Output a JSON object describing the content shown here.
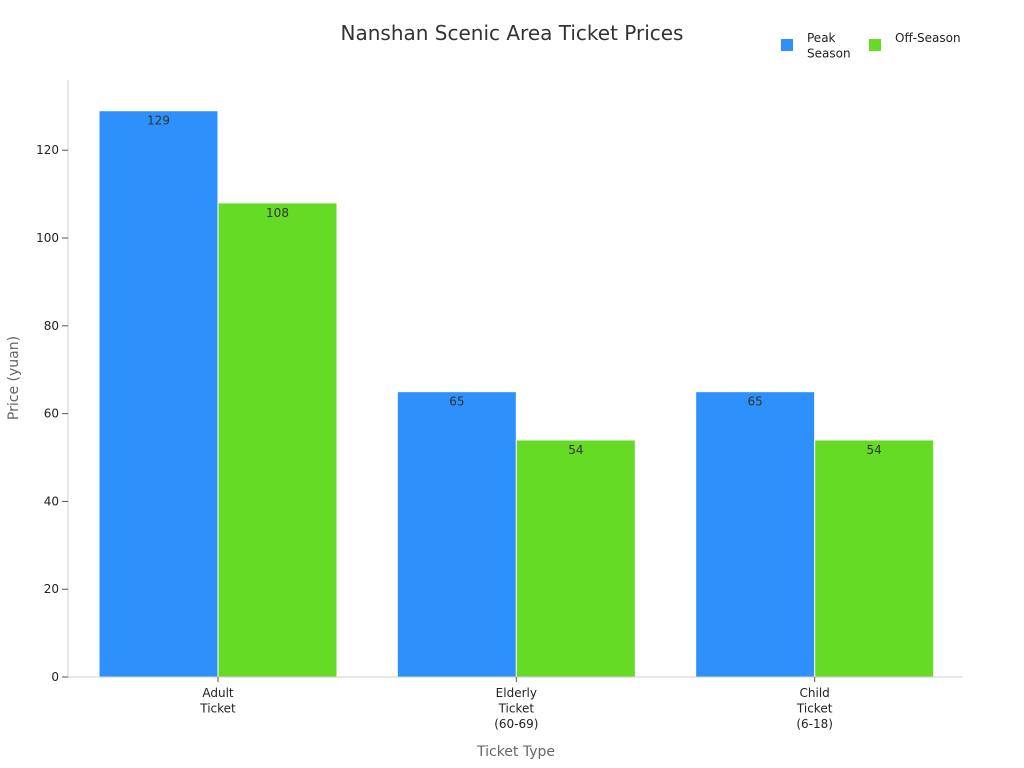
{
  "chart_data": {
    "type": "bar",
    "title": "Nanshan Scenic Area Ticket Prices",
    "xlabel": "Ticket Type",
    "ylabel": "Price (yuan)",
    "categories": [
      [
        "Adult",
        "Ticket"
      ],
      [
        "Elderly",
        "Ticket",
        "(60-69)"
      ],
      [
        "Child",
        "Ticket",
        "(6-18)"
      ]
    ],
    "series": [
      {
        "name": [
          "Peak",
          "Season"
        ],
        "values": [
          129,
          65,
          65
        ],
        "color": "#2e90fa"
      },
      {
        "name": [
          "Off-Season"
        ],
        "values": [
          108,
          54,
          54
        ],
        "color": "#66db26"
      }
    ],
    "ylim": [
      0,
      136
    ],
    "yticks": [
      0,
      20,
      40,
      60,
      80,
      100,
      120
    ],
    "grid": false,
    "legend": "top-right"
  }
}
